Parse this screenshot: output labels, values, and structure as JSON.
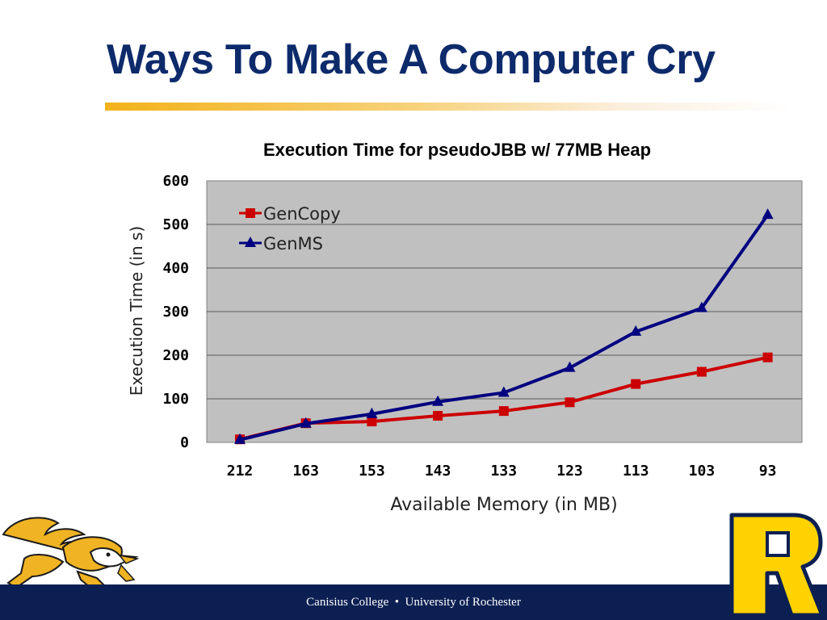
{
  "slide": {
    "title": "Ways To Make A Computer Cry",
    "footer_left": "Canisius College",
    "footer_sep": "•",
    "footer_right": "University of Rochester"
  },
  "colors": {
    "title": "#0d2a6b",
    "accent": "#f2b21a",
    "footer": "#0b1f52",
    "plot_bg": "#c0c0c0",
    "gencopy": "#cc0000",
    "genms": "#000080"
  },
  "chart_data": {
    "type": "line",
    "title": "Execution Time for pseudoJBB w/ 77MB Heap",
    "xlabel": "Available Memory (in MB)",
    "ylabel": "Execution Time (in s)",
    "categories": [
      "212",
      "163",
      "153",
      "143",
      "133",
      "123",
      "113",
      "103",
      "93"
    ],
    "ylim": [
      0,
      600
    ],
    "yticks": [
      "0",
      "100",
      "200",
      "300",
      "400",
      "500",
      "600"
    ],
    "grid": true,
    "legend_position": "top-left",
    "series": [
      {
        "name": "GenCopy",
        "color": "#cc0000",
        "marker": "square",
        "values": [
          7,
          44,
          48,
          61,
          72,
          92,
          134,
          162,
          195
        ]
      },
      {
        "name": "GenMS",
        "color": "#000080",
        "marker": "triangle",
        "values": [
          6,
          43,
          65,
          93,
          114,
          171,
          254,
          308,
          522
        ]
      }
    ]
  },
  "logos": {
    "left": "griffin-mascot",
    "right": "rochester-r"
  }
}
